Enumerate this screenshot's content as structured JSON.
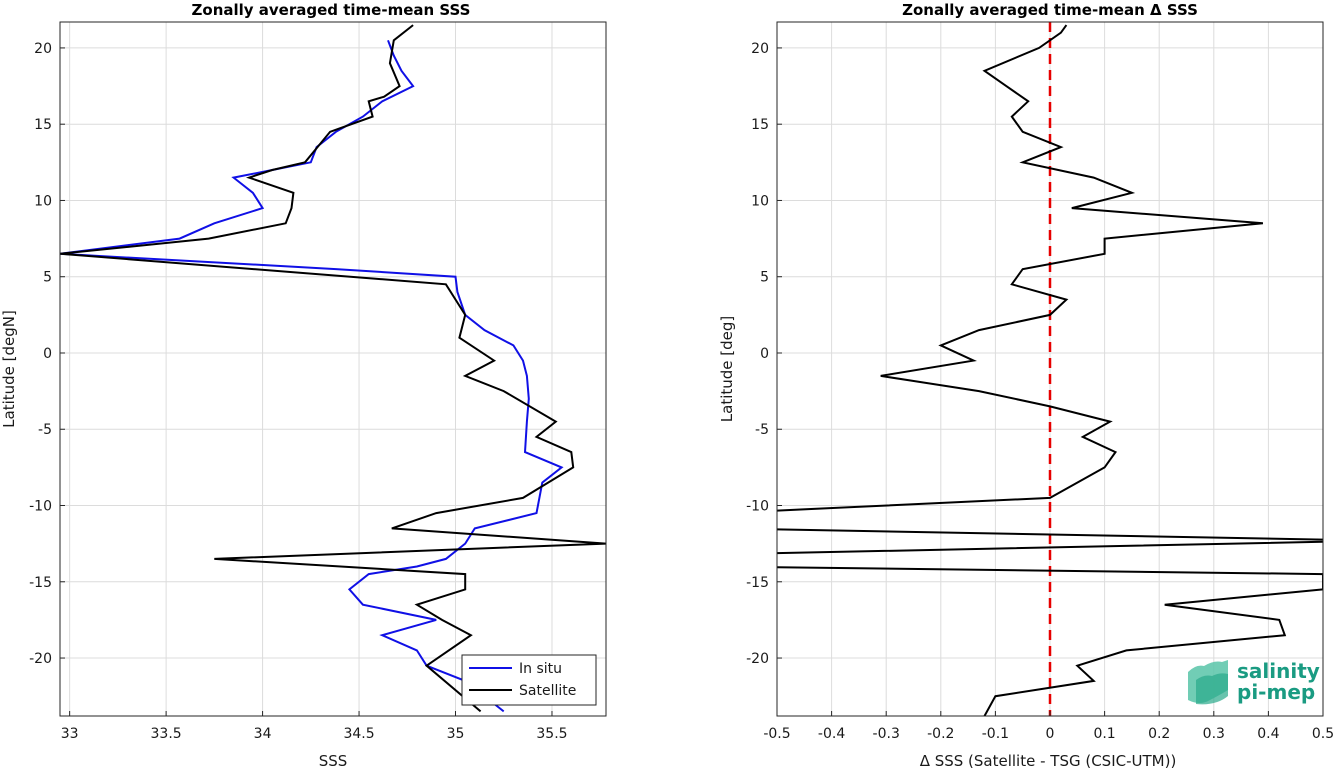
{
  "chart_data": [
    {
      "type": "line",
      "title": "Zonally averaged time-mean SSS",
      "xlabel": "SSS",
      "ylabel": "Latitude [degN]",
      "xlim": [
        32.95,
        35.78
      ],
      "ylim": [
        -23.8,
        21.7
      ],
      "xticks": [
        "33",
        "33.5",
        "34",
        "34.5",
        "35",
        "35.5"
      ],
      "xtick_values": [
        33,
        33.5,
        34,
        34.5,
        35,
        35.5
      ],
      "yticks": [
        "20",
        "15",
        "10",
        "5",
        "0",
        "-5",
        "-10",
        "-15",
        "-20"
      ],
      "ytick_values": [
        20,
        15,
        10,
        5,
        0,
        -5,
        -10,
        -15,
        -20
      ],
      "grid": true,
      "legend_position": "bottom-right",
      "series": [
        {
          "name": "In situ",
          "color": "#1010e6",
          "points": [
            [
              34.65,
              20.5
            ],
            [
              34.68,
              19.5
            ],
            [
              34.72,
              18.5
            ],
            [
              34.78,
              17.5
            ],
            [
              34.62,
              16.5
            ],
            [
              34.52,
              15.5
            ],
            [
              34.38,
              14.5
            ],
            [
              34.28,
              13.5
            ],
            [
              34.25,
              12.5
            ],
            [
              34.05,
              12.0
            ],
            [
              33.85,
              11.5
            ],
            [
              33.95,
              10.5
            ],
            [
              34.0,
              9.5
            ],
            [
              33.75,
              8.5
            ],
            [
              33.57,
              7.5
            ],
            [
              32.95,
              6.5
            ],
            [
              34.38,
              5.5
            ],
            [
              35.0,
              5.0
            ],
            [
              35.01,
              4.0
            ],
            [
              35.05,
              2.5
            ],
            [
              35.15,
              1.5
            ],
            [
              35.3,
              0.5
            ],
            [
              35.35,
              -0.5
            ],
            [
              35.37,
              -1.5
            ],
            [
              35.38,
              -3.0
            ],
            [
              35.37,
              -4.5
            ],
            [
              35.36,
              -6.5
            ],
            [
              35.55,
              -7.5
            ],
            [
              35.45,
              -8.5
            ],
            [
              35.42,
              -10.5
            ],
            [
              35.1,
              -11.5
            ],
            [
              35.05,
              -12.5
            ],
            [
              34.95,
              -13.5
            ],
            [
              34.8,
              -14.0
            ],
            [
              34.55,
              -14.5
            ],
            [
              34.45,
              -15.5
            ],
            [
              34.52,
              -16.5
            ],
            [
              34.9,
              -17.5
            ],
            [
              34.62,
              -18.5
            ],
            [
              34.8,
              -19.5
            ],
            [
              34.85,
              -20.5
            ],
            [
              35.05,
              -21.5
            ],
            [
              35.25,
              -23.5
            ]
          ]
        },
        {
          "name": "Satellite",
          "color": "#000000",
          "points": [
            [
              34.78,
              21.5
            ],
            [
              34.68,
              20.5
            ],
            [
              34.66,
              19.0
            ],
            [
              34.71,
              17.5
            ],
            [
              34.63,
              16.8
            ],
            [
              34.55,
              16.5
            ],
            [
              34.57,
              15.5
            ],
            [
              34.35,
              14.5
            ],
            [
              34.22,
              12.5
            ],
            [
              34.05,
              12.0
            ],
            [
              33.93,
              11.5
            ],
            [
              34.16,
              10.5
            ],
            [
              34.15,
              9.5
            ],
            [
              34.12,
              8.5
            ],
            [
              33.72,
              7.5
            ],
            [
              32.95,
              6.5
            ],
            [
              34.95,
              4.5
            ],
            [
              35.05,
              2.5
            ],
            [
              35.02,
              1.0
            ],
            [
              35.2,
              -0.5
            ],
            [
              35.05,
              -1.5
            ],
            [
              35.25,
              -2.5
            ],
            [
              35.52,
              -4.5
            ],
            [
              35.42,
              -5.5
            ],
            [
              35.6,
              -6.5
            ],
            [
              35.61,
              -7.5
            ],
            [
              35.35,
              -9.5
            ],
            [
              34.9,
              -10.5
            ],
            [
              34.67,
              -11.5
            ],
            [
              35.78,
              -12.5
            ],
            [
              33.75,
              -13.5
            ],
            [
              35.05,
              -14.5
            ],
            [
              35.05,
              -15.5
            ],
            [
              34.8,
              -16.5
            ],
            [
              34.93,
              -17.5
            ],
            [
              35.08,
              -18.5
            ],
            [
              34.85,
              -20.5
            ],
            [
              35.13,
              -23.5
            ]
          ]
        }
      ]
    },
    {
      "type": "line",
      "title": "Zonally averaged time-mean Δ SSS",
      "xlabel": "Δ SSS (Satellite - TSG (CSIC-UTM))",
      "ylabel": "Latitude [deg]",
      "xlim": [
        -0.5,
        0.5
      ],
      "ylim": [
        -23.8,
        21.7
      ],
      "xticks": [
        "-0.5",
        "-0.4",
        "-0.3",
        "-0.2",
        "-0.1",
        "0",
        "0.1",
        "0.2",
        "0.3",
        "0.4",
        "0.5"
      ],
      "xtick_values": [
        -0.5,
        -0.4,
        -0.3,
        -0.2,
        -0.1,
        0,
        0.1,
        0.2,
        0.3,
        0.4,
        0.5
      ],
      "yticks": [
        "20",
        "15",
        "10",
        "5",
        "0",
        "-5",
        "-10",
        "-15",
        "-20"
      ],
      "ytick_values": [
        20,
        15,
        10,
        5,
        0,
        -5,
        -10,
        -15,
        -20
      ],
      "grid": true,
      "reference_line": {
        "x": 0,
        "color": "#e60000",
        "style": "dashed"
      },
      "series": [
        {
          "name": "",
          "color": "#000000",
          "points": [
            [
              0.03,
              21.5
            ],
            [
              0.02,
              21.0
            ],
            [
              -0.02,
              20.0
            ],
            [
              -0.12,
              18.5
            ],
            [
              -0.08,
              17.5
            ],
            [
              -0.04,
              16.5
            ],
            [
              -0.07,
              15.5
            ],
            [
              -0.05,
              14.5
            ],
            [
              0.02,
              13.5
            ],
            [
              -0.05,
              12.5
            ],
            [
              0.08,
              11.5
            ],
            [
              0.15,
              10.5
            ],
            [
              0.04,
              9.5
            ],
            [
              0.39,
              8.5
            ],
            [
              0.1,
              7.5
            ],
            [
              0.1,
              6.5
            ],
            [
              -0.05,
              5.5
            ],
            [
              -0.07,
              4.5
            ],
            [
              0.03,
              3.5
            ],
            [
              0.0,
              2.5
            ],
            [
              -0.13,
              1.5
            ],
            [
              -0.2,
              0.5
            ],
            [
              -0.14,
              -0.5
            ],
            [
              -0.31,
              -1.5
            ],
            [
              -0.13,
              -2.5
            ],
            [
              0.0,
              -3.5
            ],
            [
              0.11,
              -4.5
            ],
            [
              0.06,
              -5.5
            ],
            [
              0.12,
              -6.5
            ],
            [
              0.1,
              -7.5
            ],
            [
              0.05,
              -8.5
            ],
            [
              0.0,
              -9.5
            ],
            [
              -0.6,
              -10.5
            ],
            [
              -0.6,
              -11.5
            ],
            [
              0.6,
              -12.3
            ],
            [
              -0.6,
              -13.2
            ],
            [
              -0.6,
              -14.0
            ],
            [
              0.5,
              -14.5
            ],
            [
              0.5,
              -15.5
            ],
            [
              0.21,
              -16.5
            ],
            [
              0.42,
              -17.5
            ],
            [
              0.43,
              -18.5
            ],
            [
              0.14,
              -19.5
            ],
            [
              0.05,
              -20.5
            ],
            [
              0.08,
              -21.5
            ],
            [
              -0.1,
              -22.5
            ],
            [
              -0.12,
              -23.8
            ]
          ]
        }
      ]
    }
  ],
  "legend": {
    "items": [
      {
        "label": "In situ",
        "color": "#1010e6"
      },
      {
        "label": "Satellite",
        "color": "#000000"
      }
    ]
  },
  "logo": {
    "line1": "salinity",
    "line2": "pi-mep",
    "color": "#1a9b82"
  }
}
